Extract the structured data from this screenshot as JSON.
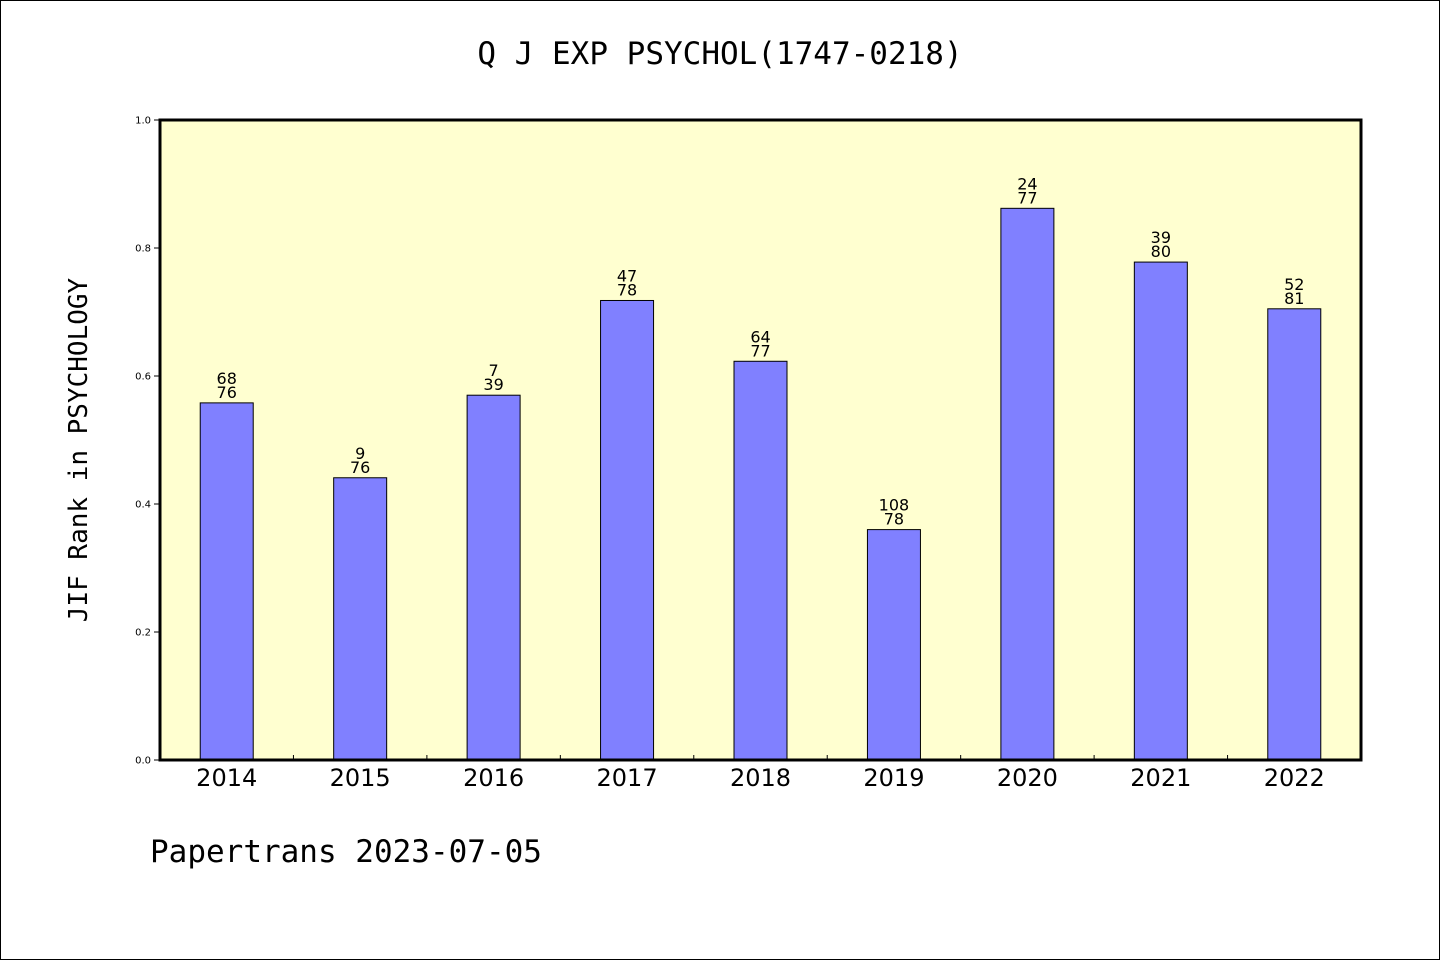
{
  "chart_data": {
    "type": "bar",
    "title": "Q J EXP PSYCHOL(1747-0218)",
    "xlabel": "",
    "ylabel": "JIF Rank in PSYCHOLOGY",
    "ylim": [
      0,
      1.0
    ],
    "yticks": [
      "0.0",
      "0.2",
      "0.4",
      "0.6",
      "0.8",
      "1.0"
    ],
    "categories": [
      "2014",
      "2015",
      "2016",
      "2017",
      "2018",
      "2019",
      "2020",
      "2021",
      "2022"
    ],
    "values": [
      0.558,
      0.441,
      0.57,
      0.718,
      0.623,
      0.36,
      0.862,
      0.778,
      0.705
    ],
    "labels_top": [
      "68",
      "9",
      "7",
      "47",
      "64",
      "108",
      "24",
      "39",
      "52"
    ],
    "labels_bottom": [
      "76",
      "76",
      "39",
      "78",
      "77",
      "78",
      "77",
      "80",
      "81"
    ],
    "grid": false,
    "bar_color": "#8080ff",
    "background_color": "#ffffd0"
  },
  "footer": "Papertrans 2023-07-05"
}
